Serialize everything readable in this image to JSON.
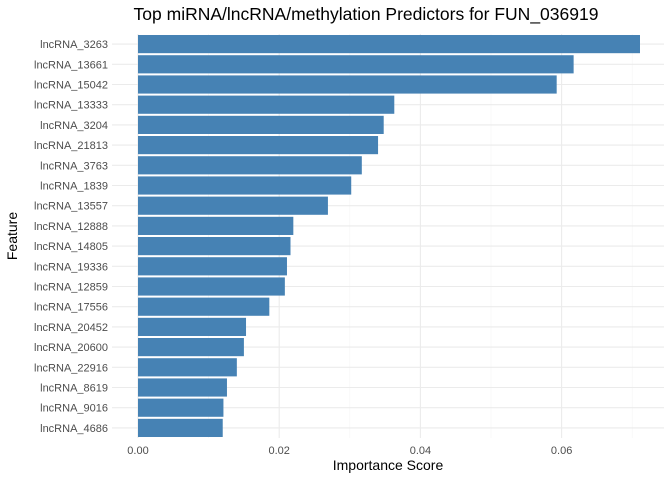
{
  "chart_data": {
    "type": "bar",
    "orientation": "horizontal",
    "title": "Top miRNA/lncRNA/methylation Predictors for FUN_036919",
    "xlabel": "Importance Score",
    "ylabel": "Feature",
    "xlim": [
      0,
      0.0745
    ],
    "x_ticks": [
      0,
      0.02,
      0.04,
      0.06
    ],
    "x_tick_labels": [
      "0.00",
      "0.02",
      "0.04",
      "0.06"
    ],
    "grid": true,
    "legend": "none",
    "bar_color": "#4682B4",
    "categories": [
      "lncRNA_3263",
      "lncRNA_13661",
      "lncRNA_15042",
      "lncRNA_13333",
      "lncRNA_3204",
      "lncRNA_21813",
      "lncRNA_3763",
      "lncRNA_1839",
      "lncRNA_13557",
      "lncRNA_12888",
      "lncRNA_14805",
      "lncRNA_19336",
      "lncRNA_12859",
      "lncRNA_17556",
      "lncRNA_20452",
      "lncRNA_20600",
      "lncRNA_22916",
      "lncRNA_8619",
      "lncRNA_9016",
      "lncRNA_4686"
    ],
    "values": [
      0.0711,
      0.0617,
      0.0593,
      0.0363,
      0.0348,
      0.034,
      0.0317,
      0.0302,
      0.0269,
      0.022,
      0.0216,
      0.0211,
      0.0208,
      0.0186,
      0.0153,
      0.015,
      0.014,
      0.0126,
      0.0121,
      0.012
    ]
  }
}
